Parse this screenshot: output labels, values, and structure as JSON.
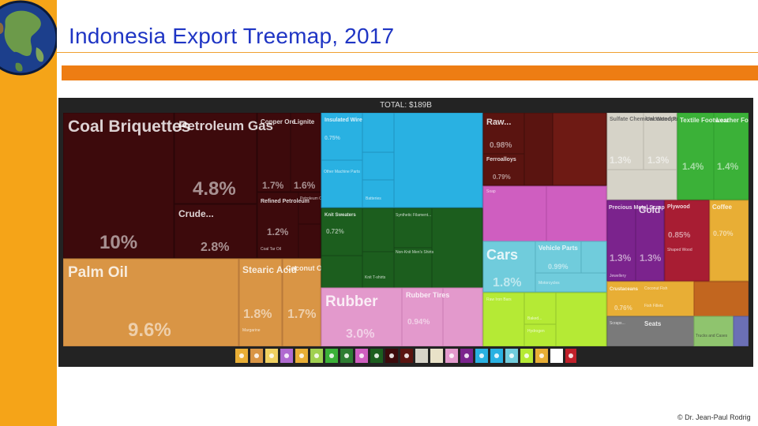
{
  "title": "Indonesia Export Treemap, 2017",
  "copyright": "© Dr. Jean-Paul Rodrig",
  "chart_data": {
    "type": "treemap",
    "total_label": "TOTAL: $189B",
    "colors": {
      "mineral": "#3d0a0c",
      "animal_veg": "#d99545",
      "textiles": "#29b1e2",
      "clothing": "#1c5e1e",
      "plastics": "#e399cc",
      "transport": "#70ccdc",
      "chemicals": "#cf5ec0",
      "metals": "#b5ea35",
      "paper": "#d6d3c8",
      "footwear": "#3bb138",
      "precious": "#7b238d",
      "wood": "#a81d33",
      "foodstuffs": "#e8ae35",
      "machines": "#7a7a7a",
      "misc": "#8e3b23",
      "instruments": "#6b6fb5"
    },
    "items": [
      {
        "label": "Coal Briquettes",
        "value": "10%",
        "group": "mineral"
      },
      {
        "label": "Petroleum Gas",
        "value": "4.8%",
        "group": "mineral"
      },
      {
        "label": "Crude...",
        "value": "2.8%",
        "group": "mineral"
      },
      {
        "label": "Copper Ore",
        "value": "1.7%",
        "group": "mineral"
      },
      {
        "label": "Lignite",
        "value": "1.6%",
        "group": "mineral"
      },
      {
        "label": "Refined Petroleum",
        "value": "1.2%",
        "group": "mineral"
      },
      {
        "label": "Palm Oil",
        "value": "9.6%",
        "group": "animal_veg"
      },
      {
        "label": "Stearic Acid",
        "value": "1.8%",
        "group": "animal_veg"
      },
      {
        "label": "Coconut Oil",
        "value": "1.7%",
        "group": "animal_veg"
      },
      {
        "label": "Insulated Wire",
        "value": "0.75%",
        "group": "textiles"
      },
      {
        "label": "Knit Sweaters",
        "value": "0.72%",
        "group": "clothing"
      },
      {
        "label": "Rubber",
        "value": "3.0%",
        "group": "plastics"
      },
      {
        "label": "Rubber Tires",
        "value": "0.94%",
        "group": "plastics"
      },
      {
        "label": "Raw...",
        "value": "0.98%",
        "group": "misc"
      },
      {
        "label": "Ferroalloys",
        "value": "0.79%",
        "group": "misc"
      },
      {
        "label": "Cars",
        "value": "1.8%",
        "group": "transport"
      },
      {
        "label": "Vehicle Parts",
        "value": "0.99%",
        "group": "transport"
      },
      {
        "label": "Sulfate Chemical Woodpulp",
        "value": "1.3%",
        "group": "paper"
      },
      {
        "label": "Uncoated Paper",
        "value": "1.3%",
        "group": "paper"
      },
      {
        "label": "Textile Footwear",
        "value": "1.4%",
        "group": "footwear"
      },
      {
        "label": "Leather Footwear",
        "value": "1.4%",
        "group": "footwear"
      },
      {
        "label": "Precious Metal Scraps",
        "value": "1.3%",
        "group": "precious"
      },
      {
        "label": "Gold",
        "value": "1.3%",
        "group": "precious"
      },
      {
        "label": "Plywood",
        "value": "0.85%",
        "group": "wood"
      },
      {
        "label": "Coffee",
        "value": "0.70%",
        "group": "foodstuffs"
      },
      {
        "label": "Seats",
        "value": "",
        "group": "machines"
      },
      {
        "label": "Crustaceans",
        "value": "0.76%",
        "group": "foodstuffs"
      }
    ],
    "small_labels": [
      "Coal Tar Oil",
      "Petroleum Coke",
      "Margarine",
      "Other Machine Parts",
      "Batteries",
      "Synthetic Filament...",
      "Knit T-shirts",
      "Non-Knit Men's Shirts",
      "Soap",
      "Motorcycles",
      "Coconut Fish",
      "Jewellery",
      "Shaped Wood",
      "Fish Fillets",
      "Trucks and Cases",
      "Raw Iron Bars",
      "Baked...",
      "Hydrogen",
      "Scraps..."
    ],
    "icon_count": 23
  }
}
